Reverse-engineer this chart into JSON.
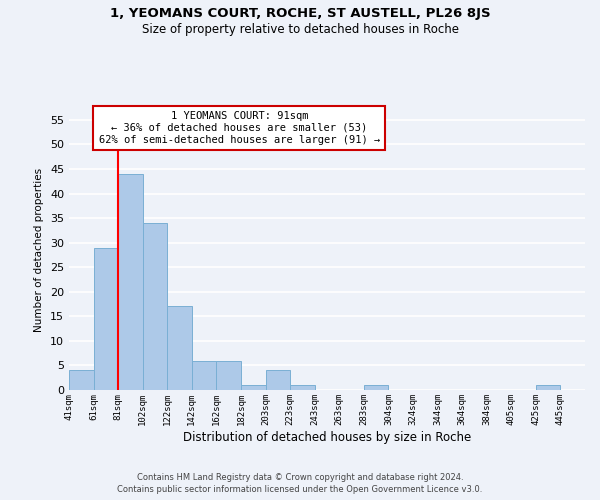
{
  "title": "1, YEOMANS COURT, ROCHE, ST AUSTELL, PL26 8JS",
  "subtitle": "Size of property relative to detached houses in Roche",
  "xlabel": "Distribution of detached houses by size in Roche",
  "ylabel": "Number of detached properties",
  "bar_labels": [
    "41sqm",
    "61sqm",
    "81sqm",
    "102sqm",
    "122sqm",
    "142sqm",
    "162sqm",
    "182sqm",
    "203sqm",
    "223sqm",
    "243sqm",
    "263sqm",
    "283sqm",
    "304sqm",
    "324sqm",
    "344sqm",
    "364sqm",
    "384sqm",
    "405sqm",
    "425sqm",
    "445sqm"
  ],
  "bar_heights": [
    4,
    29,
    44,
    34,
    17,
    6,
    6,
    1,
    4,
    1,
    0,
    0,
    1,
    0,
    0,
    0,
    0,
    0,
    0,
    1,
    0
  ],
  "bar_color": "#adc9e8",
  "bar_edge_color": "#7aafd4",
  "background_color": "#eef2f9",
  "grid_color": "#ffffff",
  "red_line_x": 2.0,
  "ylim": [
    0,
    57
  ],
  "yticks": [
    0,
    5,
    10,
    15,
    20,
    25,
    30,
    35,
    40,
    45,
    50,
    55
  ],
  "annotation_line1": "1 YEOMANS COURT: 91sqm",
  "annotation_line2": "← 36% of detached houses are smaller (53)",
  "annotation_line3": "62% of semi-detached houses are larger (91) →",
  "annotation_box_color": "#ffffff",
  "annotation_box_edge_color": "#cc0000",
  "footer1": "Contains HM Land Registry data © Crown copyright and database right 2024.",
  "footer2": "Contains public sector information licensed under the Open Government Licence v3.0."
}
